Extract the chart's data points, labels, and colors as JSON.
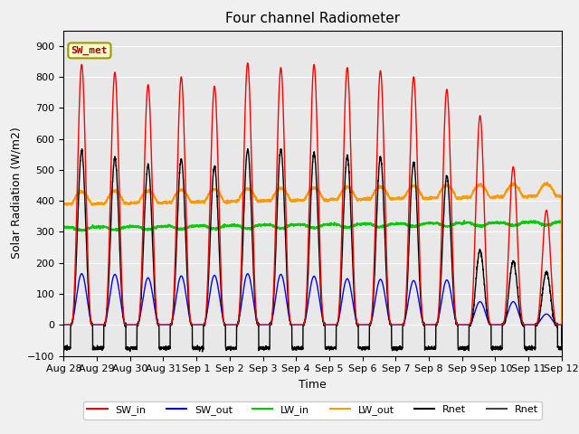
{
  "title": "Four channel Radiometer",
  "xlabel": "Time",
  "ylabel": "Solar Radiation (W/m2)",
  "ylim": [
    -100,
    950
  ],
  "n_days": 15,
  "fig_facecolor": "#f0f0f0",
  "ax_facecolor": "#e8e8e8",
  "annotation_text": "SW_met",
  "annotation_bg": "#ffffcc",
  "annotation_border": "#999900",
  "annotation_text_color": "#aa0000",
  "tick_labels": [
    "Aug 28",
    "Aug 29",
    "Aug 30",
    "Aug 31",
    "Sep 1",
    "Sep 2",
    "Sep 3",
    "Sep 4",
    "Sep 5",
    "Sep 6",
    "Sep 7",
    "Sep 8",
    "Sep 9",
    "Sep 10",
    "Sep 11",
    "Sep 12"
  ],
  "SW_in_peaks": [
    840,
    815,
    775,
    800,
    770,
    845,
    830,
    840,
    830,
    820,
    800,
    760,
    675,
    510,
    370
  ],
  "SW_out_peaks": [
    165,
    163,
    152,
    158,
    160,
    165,
    163,
    157,
    149,
    147,
    143,
    145,
    75,
    75,
    35
  ],
  "LW_in_base": 315,
  "LW_in_trend": 1.2,
  "LW_out_base": 390,
  "LW_out_trend": 1.8,
  "Rnet_peaks": [
    560,
    540,
    515,
    535,
    510,
    565,
    565,
    555,
    545,
    540,
    525,
    480,
    240,
    205,
    170
  ],
  "night_rnet": -75,
  "sw_in_color": "#ff0000",
  "sw_out_color": "#0000ff",
  "lw_in_color": "#00cc00",
  "lw_out_color": "#ff9900",
  "rnet_color": "#000000",
  "rnet2_color": "#444444",
  "grid_color": "#ffffff",
  "yticks": [
    -100,
    0,
    100,
    200,
    300,
    400,
    500,
    600,
    700,
    800,
    900
  ]
}
